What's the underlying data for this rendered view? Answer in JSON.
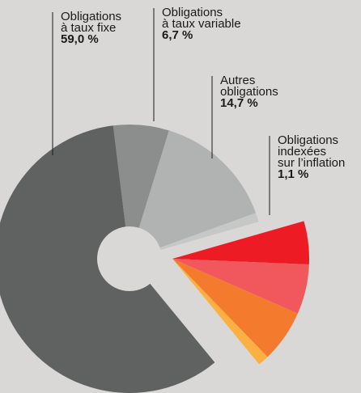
{
  "chart_data": {
    "type": "donut",
    "categories": [
      [
        "Obligations",
        "à taux variable"
      ],
      [
        "Autres",
        "obligations"
      ],
      [
        "Obligations",
        "indexées",
        "sur l’inflation"
      ],
      null,
      null,
      null,
      null,
      [
        "Obligations",
        "à taux fixe"
      ]
    ],
    "values": [
      6.7,
      14.7,
      1.1,
      5.1,
      5.9,
      6.2,
      1.3,
      59.0
    ],
    "value_labels": [
      "6,7 %",
      "14,7 %",
      "1,1 %",
      null,
      null,
      null,
      null,
      "59,0 %"
    ],
    "colors": [
      "#8c8d8d",
      "#b1b2b2",
      "#c6c7c7",
      "#ed1c24",
      "#f1585e",
      "#f47b2e",
      "#fbb041",
      "#5f6261"
    ],
    "exploded": [
      false,
      false,
      false,
      true,
      true,
      true,
      true,
      false
    ]
  }
}
